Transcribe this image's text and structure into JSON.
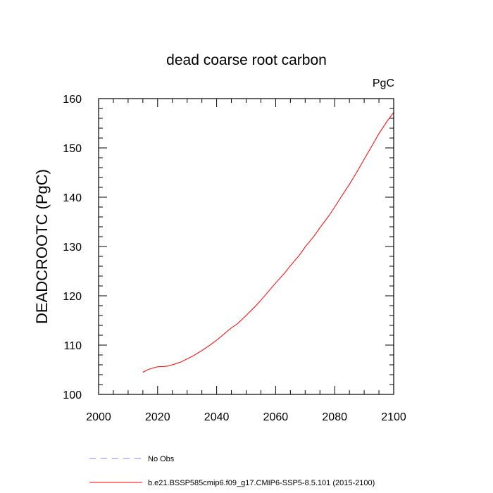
{
  "chart_data": {
    "type": "line",
    "title": "dead coarse root carbon",
    "units_label": "PgC",
    "ylabel": "DEADCROOTC  (PgC)",
    "xlabel": "",
    "xlim": [
      2000,
      2100
    ],
    "ylim": [
      100,
      160
    ],
    "x_ticks": [
      2000,
      2020,
      2040,
      2060,
      2080,
      2100
    ],
    "y_ticks": [
      100,
      110,
      120,
      130,
      140,
      150,
      160
    ],
    "grid": false,
    "legend_placement": "bottom",
    "series": [
      {
        "name": "b.e21.BSSP585cmip6.f09_g17.CMIP6-SSP5-8.5.101 (2015-2100)",
        "color": "#ff0000",
        "style": "solid",
        "x": [
          2015,
          2017,
          2020,
          2023,
          2025,
          2028,
          2030,
          2032,
          2035,
          2038,
          2040,
          2043,
          2045,
          2047,
          2050,
          2053,
          2055,
          2058,
          2060,
          2063,
          2065,
          2068,
          2070,
          2073,
          2075,
          2078,
          2080,
          2083,
          2085,
          2088,
          2090,
          2093,
          2095,
          2098,
          2100
        ],
        "y": [
          104.5,
          105.1,
          105.6,
          105.7,
          106.0,
          106.6,
          107.2,
          107.8,
          108.9,
          110.1,
          111.0,
          112.5,
          113.5,
          114.3,
          116.0,
          117.8,
          119.1,
          121.2,
          122.6,
          124.6,
          126.1,
          128.2,
          129.9,
          132.1,
          133.8,
          136.2,
          138.0,
          140.8,
          142.6,
          145.6,
          147.7,
          150.8,
          152.9,
          155.6,
          157.2
        ]
      },
      {
        "name": "No Obs",
        "color": "#8080ff",
        "style": "dashed",
        "x": [],
        "y": []
      }
    ]
  }
}
